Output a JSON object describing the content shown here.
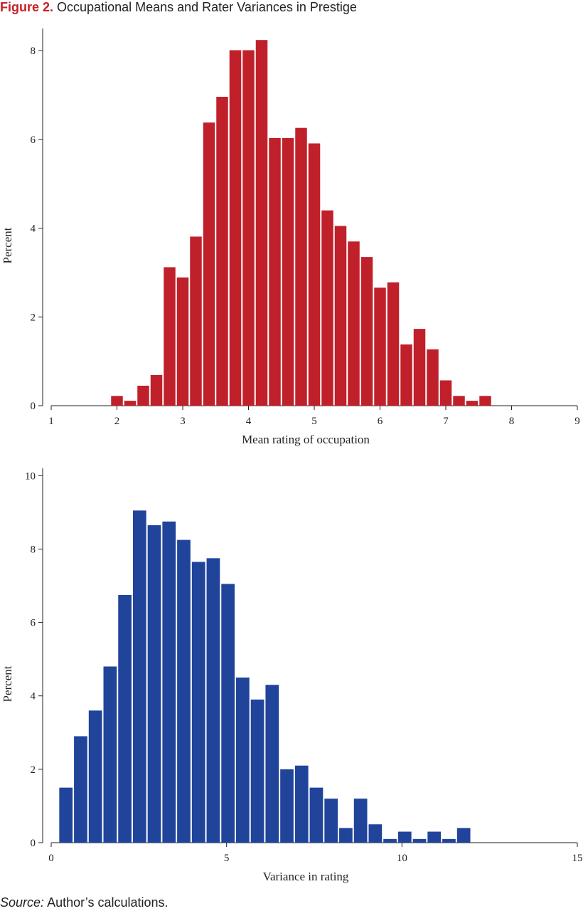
{
  "figure": {
    "number": "Figure 2.",
    "title": "Occupational Means and Rater Variances in Prestige"
  },
  "source": {
    "label": "Source:",
    "text": "Author’s calculations."
  },
  "colors": {
    "chart1_bars": "#c0202a",
    "chart2_bars": "#21449b",
    "figure_number": "#c62127"
  },
  "chart_data": [
    {
      "type": "bar",
      "title": "",
      "xlabel": "Mean rating of occupation",
      "ylabel": "Percent",
      "xlim": [
        1,
        9
      ],
      "ylim": [
        0,
        8.5
      ],
      "xticks": [
        1,
        2,
        3,
        4,
        5,
        6,
        7,
        8,
        9
      ],
      "yticks": [
        0,
        2,
        4,
        6,
        8
      ],
      "bin_width": 0.2,
      "x": [
        2.0,
        2.2,
        2.4,
        2.6,
        2.8,
        3.0,
        3.2,
        3.4,
        3.6,
        3.8,
        4.0,
        4.2,
        4.4,
        4.6,
        4.8,
        5.0,
        5.2,
        5.4,
        5.6,
        5.8,
        6.0,
        6.2,
        6.4,
        6.6,
        6.8,
        7.0,
        7.2,
        7.4,
        7.6
      ],
      "values": [
        0.22,
        0.11,
        0.45,
        0.69,
        3.12,
        2.89,
        3.81,
        6.38,
        6.96,
        8.01,
        8.01,
        8.24,
        6.03,
        6.03,
        6.26,
        5.91,
        4.4,
        4.05,
        3.7,
        3.35,
        2.66,
        2.78,
        1.38,
        1.73,
        1.27,
        0.57,
        0.22,
        0.11,
        0.22
      ],
      "grid": false,
      "legend": "none"
    },
    {
      "type": "bar",
      "title": "",
      "xlabel": "Variance in rating",
      "ylabel": "Percent",
      "xlim": [
        0,
        15
      ],
      "ylim": [
        0,
        10.2
      ],
      "xticks": [
        0,
        5,
        10,
        15
      ],
      "yticks": [
        0,
        2,
        4,
        6,
        8,
        10
      ],
      "bin_width": 0.42,
      "x": [
        0.42,
        0.84,
        1.26,
        1.68,
        2.1,
        2.52,
        2.94,
        3.36,
        3.78,
        4.2,
        4.62,
        5.04,
        5.46,
        5.88,
        6.3,
        6.72,
        7.14,
        7.56,
        7.98,
        8.4,
        8.82,
        9.24,
        9.66,
        10.08,
        10.5,
        10.92,
        11.34,
        11.76
      ],
      "values": [
        1.5,
        2.9,
        3.6,
        4.8,
        6.75,
        9.05,
        8.65,
        8.75,
        8.25,
        7.65,
        7.75,
        7.05,
        4.5,
        3.9,
        4.3,
        2.0,
        2.1,
        1.5,
        1.2,
        0.4,
        1.2,
        0.5,
        0.1,
        0.3,
        0.1,
        0.3,
        0.1,
        0.4
      ],
      "grid": false,
      "legend": "none"
    }
  ]
}
